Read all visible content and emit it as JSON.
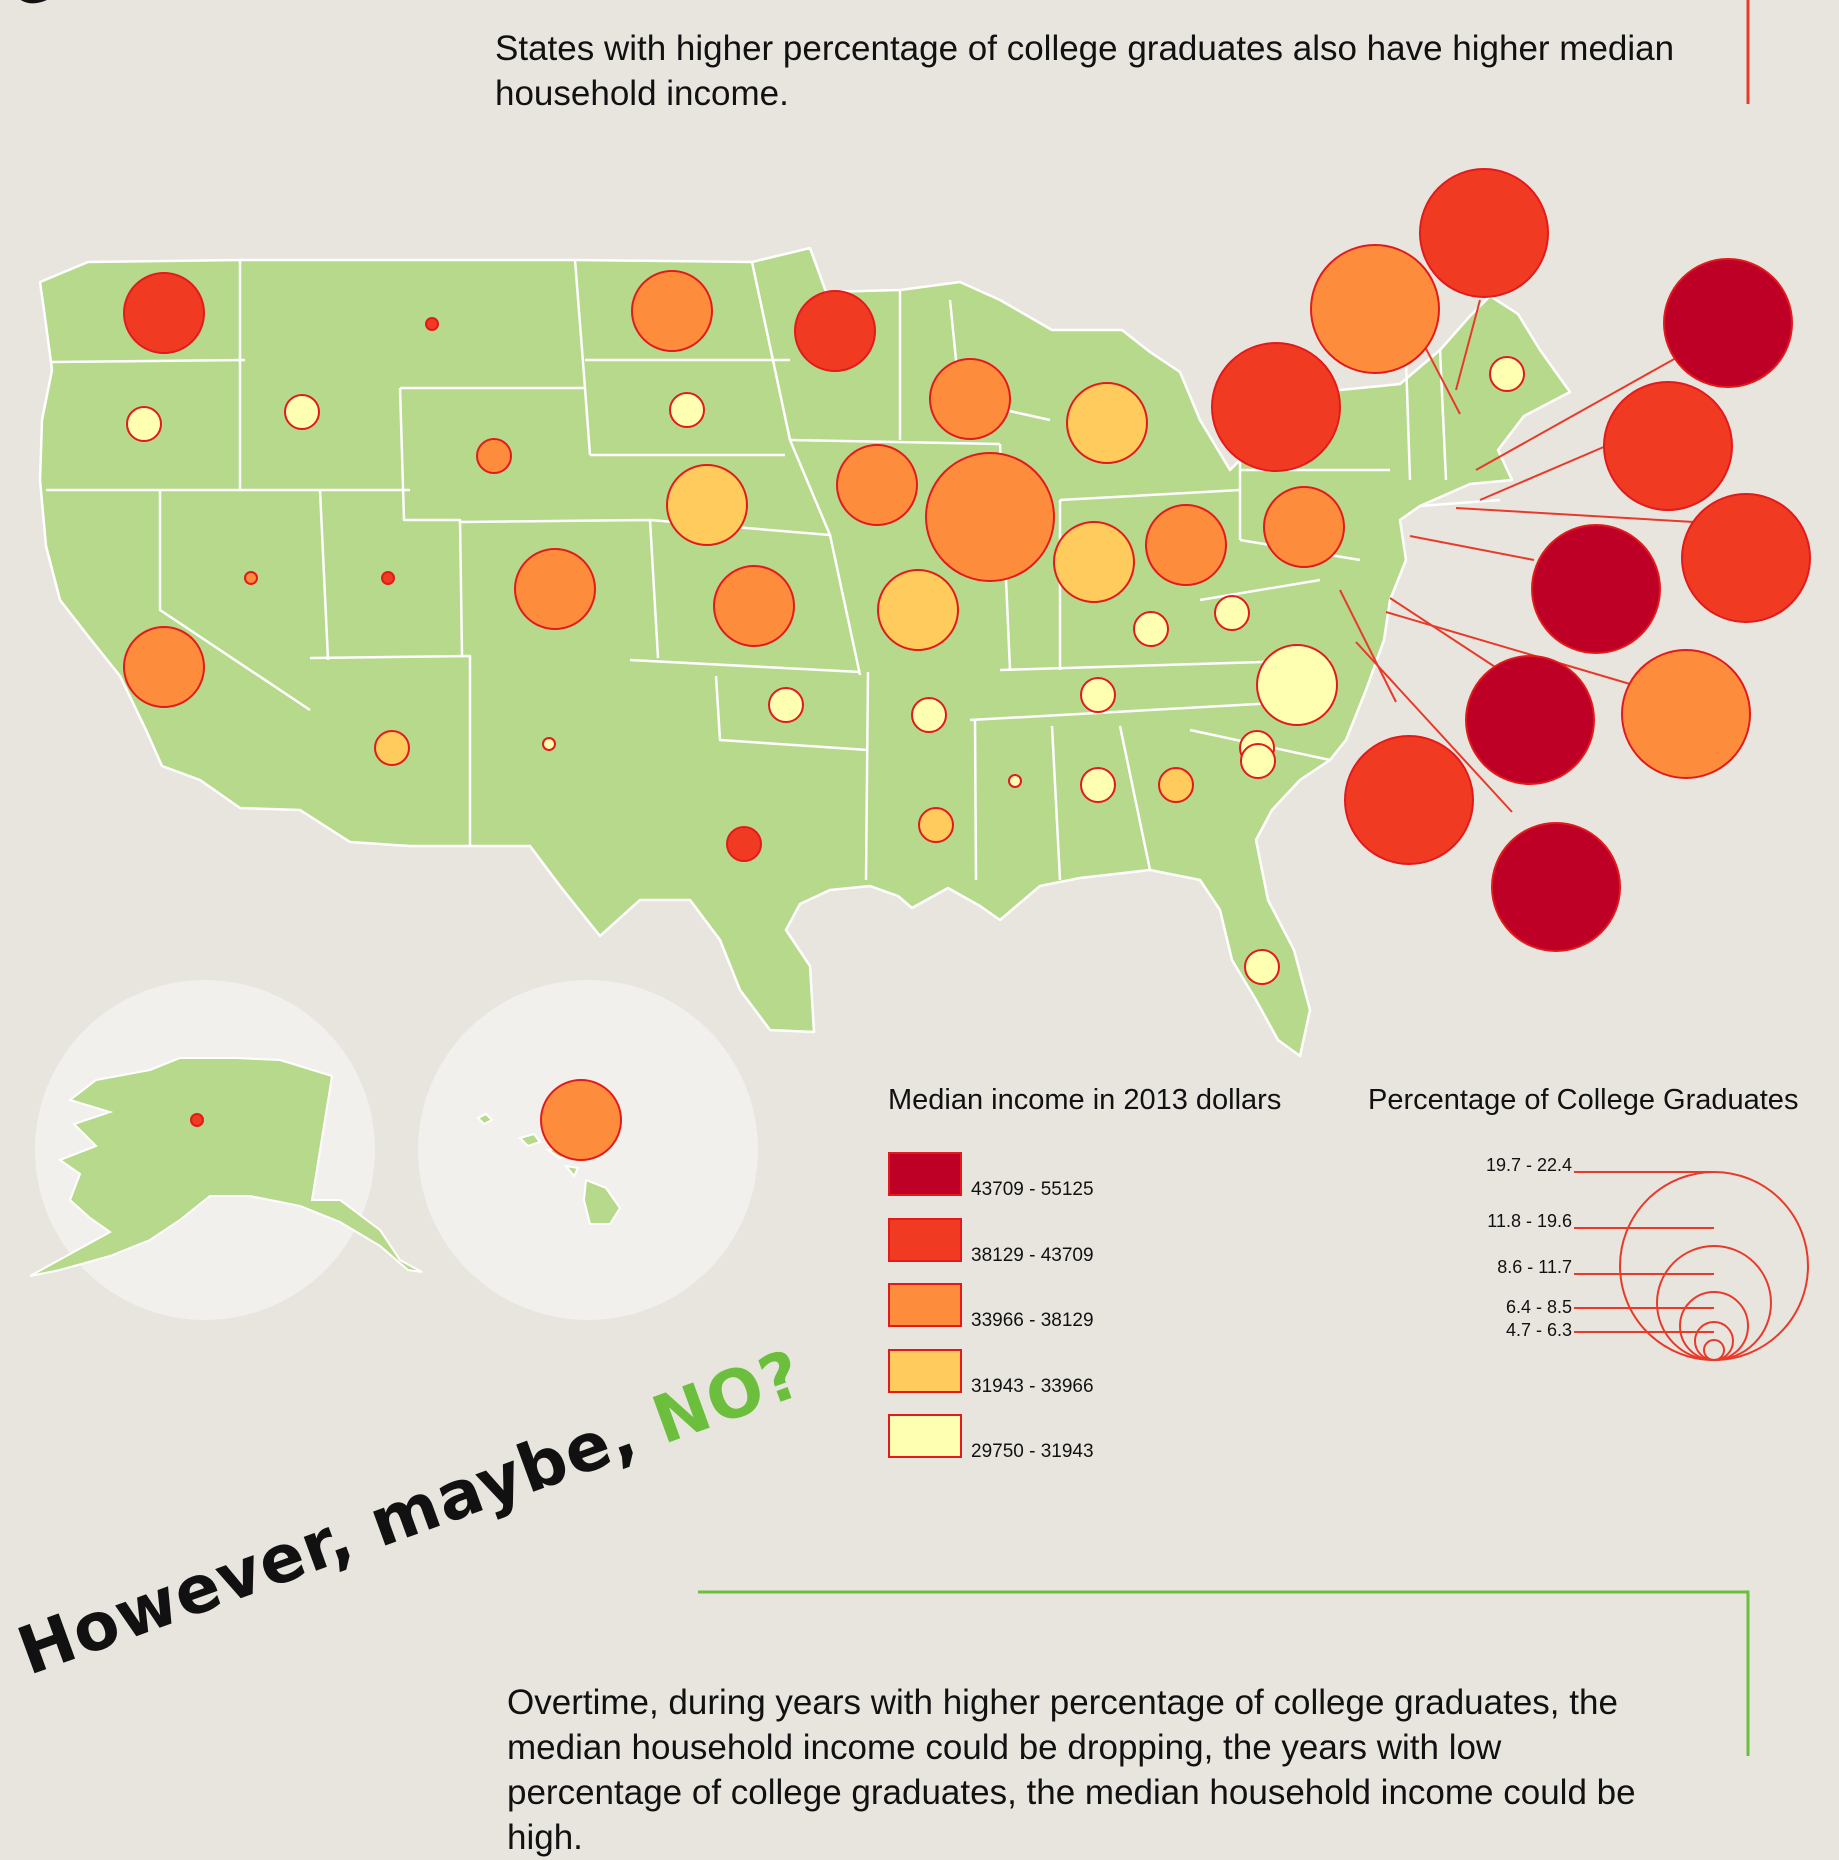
{
  "headings": {
    "top_partial": "Ove",
    "bottom_part1": "However, maybe, ",
    "bottom_part2": "NO?"
  },
  "intro_text": "States with higher percentage of college graduates also have higher median household income.",
  "body_text": "Overtime, during years with higher percentage of college graduates, the median household income could be dropping, the years with low percentage of college graduates, the median household income could be high.",
  "colors": {
    "background": "#e8e5df",
    "land": "#b7d98c",
    "inset_circle": "#f1f0ed",
    "accent_red": "#e83a2a",
    "accent_green": "#6cbf3c",
    "class_1": "#be0026",
    "class_2": "#f03a22",
    "class_3": "#fd8d3c",
    "class_4": "#fecb5c",
    "class_5": "#ffffb2"
  },
  "legend_income": {
    "title": "Median income in 2013 dollars",
    "classes": [
      {
        "label": "43709 - 55125",
        "color": "#be0026"
      },
      {
        "label": "38129 - 43709",
        "color": "#f03a22"
      },
      {
        "label": "33966 - 38129",
        "color": "#fd8d3c"
      },
      {
        "label": "31943 - 33966",
        "color": "#fecb5c"
      },
      {
        "label": "29750 - 31943",
        "color": "#ffffb2"
      }
    ]
  },
  "legend_grads": {
    "title": "Percentage of College Graduates",
    "classes": [
      {
        "label": "19.7 - 22.4",
        "rank": 5
      },
      {
        "label": "11.8 - 19.6",
        "rank": 4
      },
      {
        "label": "8.6 - 11.7",
        "rank": 3
      },
      {
        "label": "6.4 - 8.5",
        "rank": 2
      },
      {
        "label": "4.7 - 6.3",
        "rank": 1
      }
    ]
  },
  "state_symbols": [
    {
      "state": "Washington",
      "income_class": 2,
      "grad_class": 4
    },
    {
      "state": "Oregon",
      "income_class": 5,
      "grad_class": 2
    },
    {
      "state": "Idaho",
      "income_class": 5,
      "grad_class": 2
    },
    {
      "state": "Montana",
      "income_class": 2,
      "grad_class": 1
    },
    {
      "state": "North Dakota",
      "income_class": 3,
      "grad_class": 4
    },
    {
      "state": "Minnesota",
      "income_class": 2,
      "grad_class": 4
    },
    {
      "state": "South Dakota",
      "income_class": 5,
      "grad_class": 2
    },
    {
      "state": "Wyoming",
      "income_class": 3,
      "grad_class": 2
    },
    {
      "state": "Wisconsin",
      "income_class": 3,
      "grad_class": 4
    },
    {
      "state": "Michigan",
      "income_class": 4,
      "grad_class": 4
    },
    {
      "state": "Iowa",
      "income_class": 3,
      "grad_class": 4
    },
    {
      "state": "Nebraska",
      "income_class": 4,
      "grad_class": 4
    },
    {
      "state": "Illinois",
      "income_class": 3,
      "grad_class": 5
    },
    {
      "state": "Indiana",
      "income_class": 4,
      "grad_class": 4
    },
    {
      "state": "Ohio",
      "income_class": 3,
      "grad_class": 4
    },
    {
      "state": "Pennsylvania",
      "income_class": 3,
      "grad_class": 4
    },
    {
      "state": "Nevada",
      "income_class": 3,
      "grad_class": 1
    },
    {
      "state": "Utah",
      "income_class": 2,
      "grad_class": 1
    },
    {
      "state": "Colorado",
      "income_class": 3,
      "grad_class": 4
    },
    {
      "state": "Kansas",
      "income_class": 3,
      "grad_class": 4
    },
    {
      "state": "Missouri",
      "income_class": 4,
      "grad_class": 4
    },
    {
      "state": "California",
      "income_class": 3,
      "grad_class": 4
    },
    {
      "state": "Kentucky",
      "income_class": 5,
      "grad_class": 2
    },
    {
      "state": "West Virginia",
      "income_class": 5,
      "grad_class": 2
    },
    {
      "state": "Virginia",
      "income_class": 5,
      "grad_class": 4
    },
    {
      "state": "Oklahoma",
      "income_class": 5,
      "grad_class": 2
    },
    {
      "state": "Arkansas",
      "income_class": 5,
      "grad_class": 2
    },
    {
      "state": "Tennessee",
      "income_class": 5,
      "grad_class": 2
    },
    {
      "state": "Arizona",
      "income_class": 4,
      "grad_class": 2
    },
    {
      "state": "New Mexico",
      "income_class": 5,
      "grad_class": 1
    },
    {
      "state": "North Carolina",
      "income_class": 5,
      "grad_class": 2
    },
    {
      "state": "South Carolina",
      "income_class": 5,
      "grad_class": 2
    },
    {
      "state": "Mississippi",
      "income_class": 5,
      "grad_class": 1
    },
    {
      "state": "Alabama",
      "income_class": 5,
      "grad_class": 2
    },
    {
      "state": "Georgia",
      "income_class": 4,
      "grad_class": 2
    },
    {
      "state": "Texas",
      "income_class": 2,
      "grad_class": 2
    },
    {
      "state": "Louisiana",
      "income_class": 4,
      "grad_class": 2
    },
    {
      "state": "Florida",
      "income_class": 5,
      "grad_class": 2
    },
    {
      "state": "Maine",
      "income_class": 5,
      "grad_class": 2
    },
    {
      "state": "New York",
      "income_class": 2,
      "grad_class": 5
    },
    {
      "state": "Vermont",
      "income_class": 3,
      "grad_class": 5
    },
    {
      "state": "New Hampshire",
      "income_class": 2,
      "grad_class": 5
    },
    {
      "state": "Massachusetts",
      "income_class": 1,
      "grad_class": 5
    },
    {
      "state": "Rhode Island",
      "income_class": 2,
      "grad_class": 5
    },
    {
      "state": "Connecticut",
      "income_class": 2,
      "grad_class": 5
    },
    {
      "state": "New Jersey",
      "income_class": 1,
      "grad_class": 5
    },
    {
      "state": "Delaware",
      "income_class": 1,
      "grad_class": 5
    },
    {
      "state": "Maryland",
      "income_class": 3,
      "grad_class": 5
    },
    {
      "state": "District of Columbia",
      "income_class": 2,
      "grad_class": 5
    },
    {
      "state": "Virginia (callout)",
      "income_class": 1,
      "grad_class": 5
    },
    {
      "state": "Alaska",
      "income_class": 2,
      "grad_class": 1
    },
    {
      "state": "Hawaii",
      "income_class": 3,
      "grad_class": 4
    }
  ]
}
